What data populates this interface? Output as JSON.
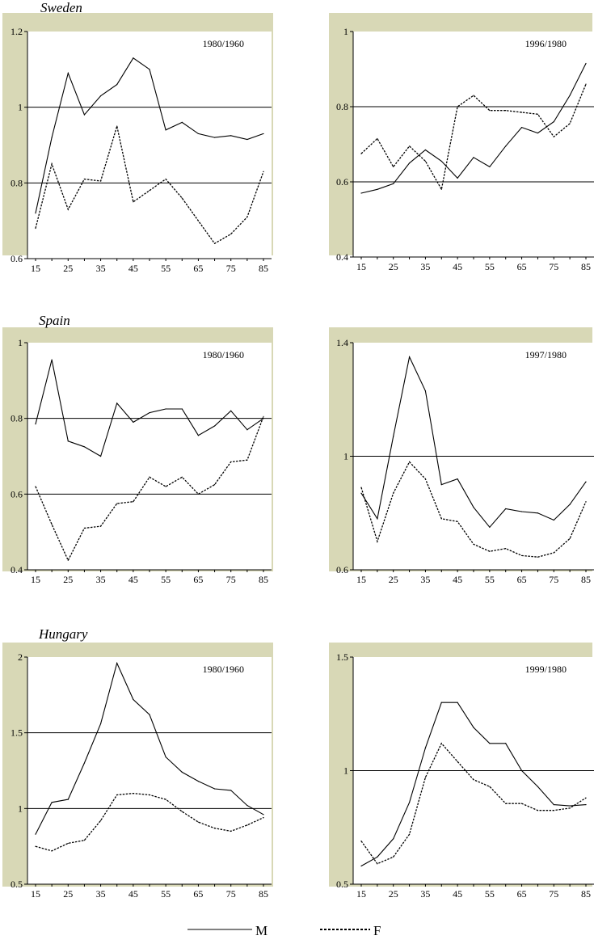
{
  "chart_data": [
    {
      "type": "line",
      "country": "Sweden",
      "label": "1980/1960",
      "x": [
        15,
        20,
        25,
        30,
        35,
        40,
        45,
        50,
        55,
        60,
        65,
        70,
        75,
        80,
        85
      ],
      "ylim": [
        0.6,
        1.2
      ],
      "yticks": [
        "0.6",
        "0.8",
        "1",
        "1.2"
      ],
      "refLines": [
        0.8,
        1.0
      ],
      "xticks": [
        "15",
        "25",
        "35",
        "45",
        "55",
        "65",
        "75",
        "85"
      ],
      "series": [
        {
          "name": "M",
          "values": [
            0.72,
            0.92,
            1.09,
            0.98,
            1.03,
            1.06,
            1.13,
            1.1,
            0.94,
            0.96,
            0.93,
            0.92,
            0.925,
            0.915,
            0.93
          ]
        },
        {
          "name": "F",
          "values": [
            0.68,
            0.85,
            0.73,
            0.81,
            0.805,
            0.95,
            0.75,
            0.78,
            0.81,
            0.76,
            0.7,
            0.64,
            0.665,
            0.71,
            0.83
          ]
        }
      ]
    },
    {
      "type": "line",
      "country": "",
      "label": "1996/1980",
      "x": [
        15,
        20,
        25,
        30,
        35,
        40,
        45,
        50,
        55,
        60,
        65,
        70,
        75,
        80,
        85
      ],
      "ylim": [
        0.4,
        1.0
      ],
      "yticks": [
        "0.4",
        "0.6",
        "0.8",
        "1"
      ],
      "refLines": [
        0.6,
        0.8
      ],
      "xticks": [
        "15",
        "25",
        "35",
        "45",
        "55",
        "65",
        "75",
        "85"
      ],
      "series": [
        {
          "name": "M",
          "values": [
            0.57,
            0.58,
            0.595,
            0.65,
            0.685,
            0.655,
            0.61,
            0.665,
            0.64,
            0.695,
            0.745,
            0.73,
            0.76,
            0.83,
            0.915
          ]
        },
        {
          "name": "F",
          "values": [
            0.675,
            0.715,
            0.64,
            0.695,
            0.655,
            0.58,
            0.8,
            0.83,
            0.79,
            0.79,
            0.785,
            0.78,
            0.72,
            0.755,
            0.86
          ]
        }
      ]
    },
    {
      "type": "line",
      "country": "Spain",
      "label": "1980/1960",
      "x": [
        15,
        20,
        25,
        30,
        35,
        40,
        45,
        50,
        55,
        60,
        65,
        70,
        75,
        80,
        85
      ],
      "ylim": [
        0.4,
        1.0
      ],
      "yticks": [
        "0.4",
        "0.6",
        "0.8",
        "1"
      ],
      "refLines": [
        0.6,
        0.8
      ],
      "xticks": [
        "15",
        "25",
        "35",
        "45",
        "55",
        "65",
        "75",
        "85"
      ],
      "series": [
        {
          "name": "M",
          "values": [
            0.785,
            0.955,
            0.74,
            0.725,
            0.7,
            0.84,
            0.79,
            0.815,
            0.825,
            0.825,
            0.755,
            0.78,
            0.82,
            0.77,
            0.8
          ]
        },
        {
          "name": "F",
          "values": [
            0.62,
            0.52,
            0.425,
            0.51,
            0.515,
            0.575,
            0.58,
            0.645,
            0.62,
            0.645,
            0.6,
            0.625,
            0.685,
            0.69,
            0.805
          ]
        }
      ]
    },
    {
      "type": "line",
      "country": "",
      "label": "1997/1980",
      "x": [
        15,
        20,
        25,
        30,
        35,
        40,
        45,
        50,
        55,
        60,
        65,
        70,
        75,
        80,
        85
      ],
      "ylim": [
        0.6,
        1.4
      ],
      "yticks": [
        "0.6",
        "1",
        "1.4"
      ],
      "refLines": [
        1.0
      ],
      "xticks": [
        "15",
        "25",
        "35",
        "45",
        "55",
        "65",
        "75",
        "85"
      ],
      "series": [
        {
          "name": "M",
          "values": [
            0.87,
            0.78,
            1.07,
            1.35,
            1.23,
            0.9,
            0.92,
            0.82,
            0.75,
            0.815,
            0.805,
            0.8,
            0.775,
            0.83,
            0.91
          ]
        },
        {
          "name": "F",
          "values": [
            0.89,
            0.7,
            0.87,
            0.98,
            0.92,
            0.78,
            0.77,
            0.69,
            0.665,
            0.675,
            0.65,
            0.645,
            0.66,
            0.71,
            0.84
          ]
        }
      ]
    },
    {
      "type": "line",
      "country": "Hungary",
      "label": "1980/1960",
      "x": [
        15,
        20,
        25,
        30,
        35,
        40,
        45,
        50,
        55,
        60,
        65,
        70,
        75,
        80,
        85
      ],
      "ylim": [
        0.5,
        2.0
      ],
      "yticks": [
        "0.5",
        "1",
        "1.5",
        "2"
      ],
      "refLines": [
        1.0,
        1.5
      ],
      "xticks": [
        "15",
        "25",
        "35",
        "45",
        "55",
        "65",
        "75",
        "85"
      ],
      "series": [
        {
          "name": "M",
          "values": [
            0.83,
            1.04,
            1.06,
            1.3,
            1.56,
            1.96,
            1.72,
            1.62,
            1.34,
            1.24,
            1.18,
            1.13,
            1.12,
            1.02,
            0.96
          ]
        },
        {
          "name": "F",
          "values": [
            0.75,
            0.72,
            0.77,
            0.79,
            0.92,
            1.09,
            1.1,
            1.09,
            1.06,
            0.98,
            0.91,
            0.87,
            0.85,
            0.89,
            0.94
          ]
        }
      ]
    },
    {
      "type": "line",
      "country": "",
      "label": "1999/1980",
      "x": [
        15,
        20,
        25,
        30,
        35,
        40,
        45,
        50,
        55,
        60,
        65,
        70,
        75,
        80,
        85
      ],
      "ylim": [
        0.5,
        1.5
      ],
      "yticks": [
        "0.5",
        "1",
        "1.5"
      ],
      "refLines": [
        1.0
      ],
      "xticks": [
        "15",
        "25",
        "35",
        "45",
        "55",
        "65",
        "75",
        "85"
      ],
      "series": [
        {
          "name": "M",
          "values": [
            0.58,
            0.62,
            0.7,
            0.86,
            1.1,
            1.3,
            1.3,
            1.19,
            1.12,
            1.12,
            1.0,
            0.93,
            0.85,
            0.845,
            0.85
          ]
        },
        {
          "name": "F",
          "values": [
            0.69,
            0.59,
            0.62,
            0.72,
            0.97,
            1.12,
            1.04,
            0.96,
            0.93,
            0.855,
            0.855,
            0.825,
            0.825,
            0.835,
            0.88
          ]
        }
      ]
    }
  ],
  "legend": {
    "m_label": "M",
    "f_label": "F"
  },
  "colors": {
    "panel_background": "#d8d8b6",
    "plot_background": "#ffffff",
    "line": "#000000"
  }
}
